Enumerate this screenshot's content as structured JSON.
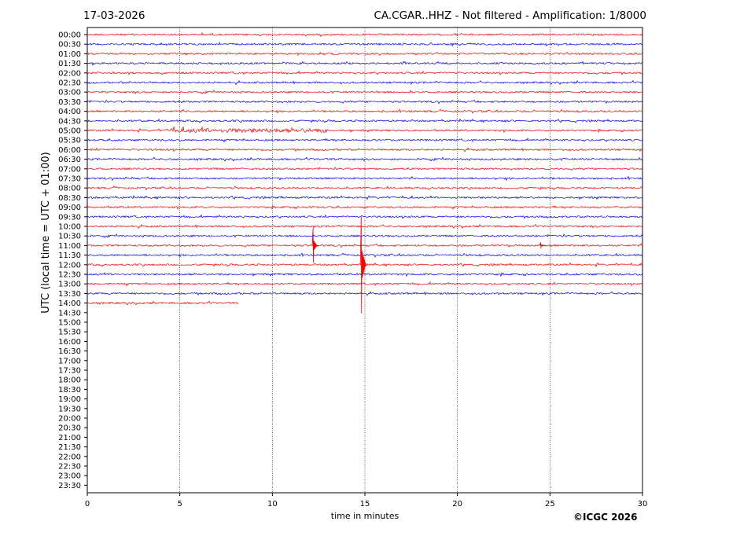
{
  "header": {
    "date": "17-03-2026",
    "title": "CA.CGAR..HHZ - Not filtered - Amplification: 1/8000"
  },
  "footer": {
    "copyright": "©ICGC 2026"
  },
  "colors": {
    "even_trace": "#ff0000",
    "odd_trace": "#0000ff",
    "grid": "#000000"
  },
  "chart_data": {
    "type": "line",
    "subtype": "helicorder",
    "xlabel": "time in minutes",
    "ylabel": "UTC (local time = UTC + 01:00)",
    "xlim": [
      0,
      30
    ],
    "xticks": [
      0,
      5,
      10,
      15,
      20,
      25,
      30
    ],
    "grid": "vertical dotted lines at 5-minute intervals",
    "rows": [
      "00:00",
      "00:30",
      "01:00",
      "01:30",
      "02:00",
      "02:30",
      "03:00",
      "03:30",
      "04:00",
      "04:30",
      "05:00",
      "05:30",
      "06:00",
      "06:30",
      "07:00",
      "07:30",
      "08:00",
      "08:30",
      "09:00",
      "09:30",
      "10:00",
      "10:30",
      "11:00",
      "11:30",
      "12:00",
      "12:30",
      "13:00",
      "13:30",
      "14:00",
      "14:30",
      "15:00",
      "15:30",
      "16:00",
      "16:30",
      "17:00",
      "17:30",
      "18:00",
      "18:30",
      "19:00",
      "19:30",
      "20:00",
      "20:30",
      "21:00",
      "21:30",
      "22:00",
      "22:30",
      "23:00",
      "23:30"
    ],
    "recorded_rows": 29,
    "last_row_end_minute": 8.2,
    "events": [
      {
        "row": "11:00",
        "minute": 12.2
      },
      {
        "row": "12:00",
        "minute": 14.8
      },
      {
        "row": "11:00",
        "minute": 24.5
      }
    ]
  }
}
